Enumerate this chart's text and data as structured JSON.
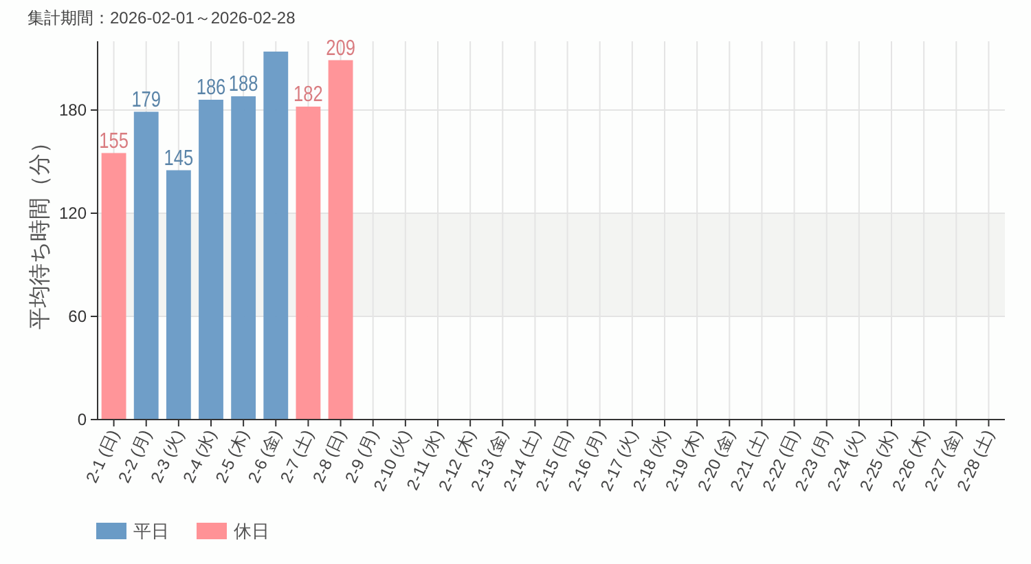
{
  "chart_data": {
    "type": "bar",
    "title": "集計期間：2026-02-01～2026-02-28",
    "ylabel": "平均待ち時間（分）",
    "categories": [
      "2-1 (日)",
      "2-2 (月)",
      "2-3 (火)",
      "2-4 (水)",
      "2-5 (木)",
      "2-6 (金)",
      "2-7 (土)",
      "2-8 (日)",
      "2-9 (月)",
      "2-10 (火)",
      "2-11 (水)",
      "2-12 (木)",
      "2-13 (金)",
      "2-14 (土)",
      "2-15 (日)",
      "2-16 (月)",
      "2-17 (火)",
      "2-18 (水)",
      "2-19 (木)",
      "2-20 (金)",
      "2-21 (土)",
      "2-22 (日)",
      "2-23 (月)",
      "2-24 (火)",
      "2-25 (水)",
      "2-26 (木)",
      "2-27 (金)",
      "2-28 (土)"
    ],
    "series": [
      {
        "name": "平日",
        "color": "#6a9bc6",
        "values": [
          null,
          179,
          145,
          186,
          188,
          214,
          null,
          null,
          null,
          null,
          null,
          null,
          null,
          null,
          null,
          null,
          null,
          null,
          null,
          null,
          null,
          null,
          null,
          null,
          null,
          null,
          null,
          null
        ],
        "value_labels": [
          null,
          "179",
          "145",
          "186",
          "188",
          null,
          null,
          null,
          null,
          null,
          null,
          null,
          null,
          null,
          null,
          null,
          null,
          null,
          null,
          null,
          null,
          null,
          null,
          null,
          null,
          null,
          null,
          null
        ]
      },
      {
        "name": "休日",
        "color": "#ff9296",
        "values": [
          155,
          null,
          null,
          null,
          null,
          null,
          182,
          209,
          null,
          null,
          null,
          null,
          null,
          null,
          null,
          null,
          null,
          null,
          null,
          null,
          null,
          null,
          null,
          null,
          null,
          null,
          null,
          null
        ],
        "value_labels": [
          "155",
          null,
          null,
          null,
          null,
          null,
          "182",
          "209",
          null,
          null,
          null,
          null,
          null,
          null,
          null,
          null,
          null,
          null,
          null,
          null,
          null,
          null,
          null,
          null,
          null,
          null,
          null,
          null
        ]
      }
    ],
    "stacked": true,
    "ylim": [
      0,
      220
    ],
    "yticks": [
      0,
      60,
      120,
      180
    ],
    "grid": true,
    "legend": "bottom left",
    "bands": [
      {
        "axis": "y",
        "from": 60,
        "to": 120,
        "color": "#f3f4f2"
      }
    ]
  }
}
